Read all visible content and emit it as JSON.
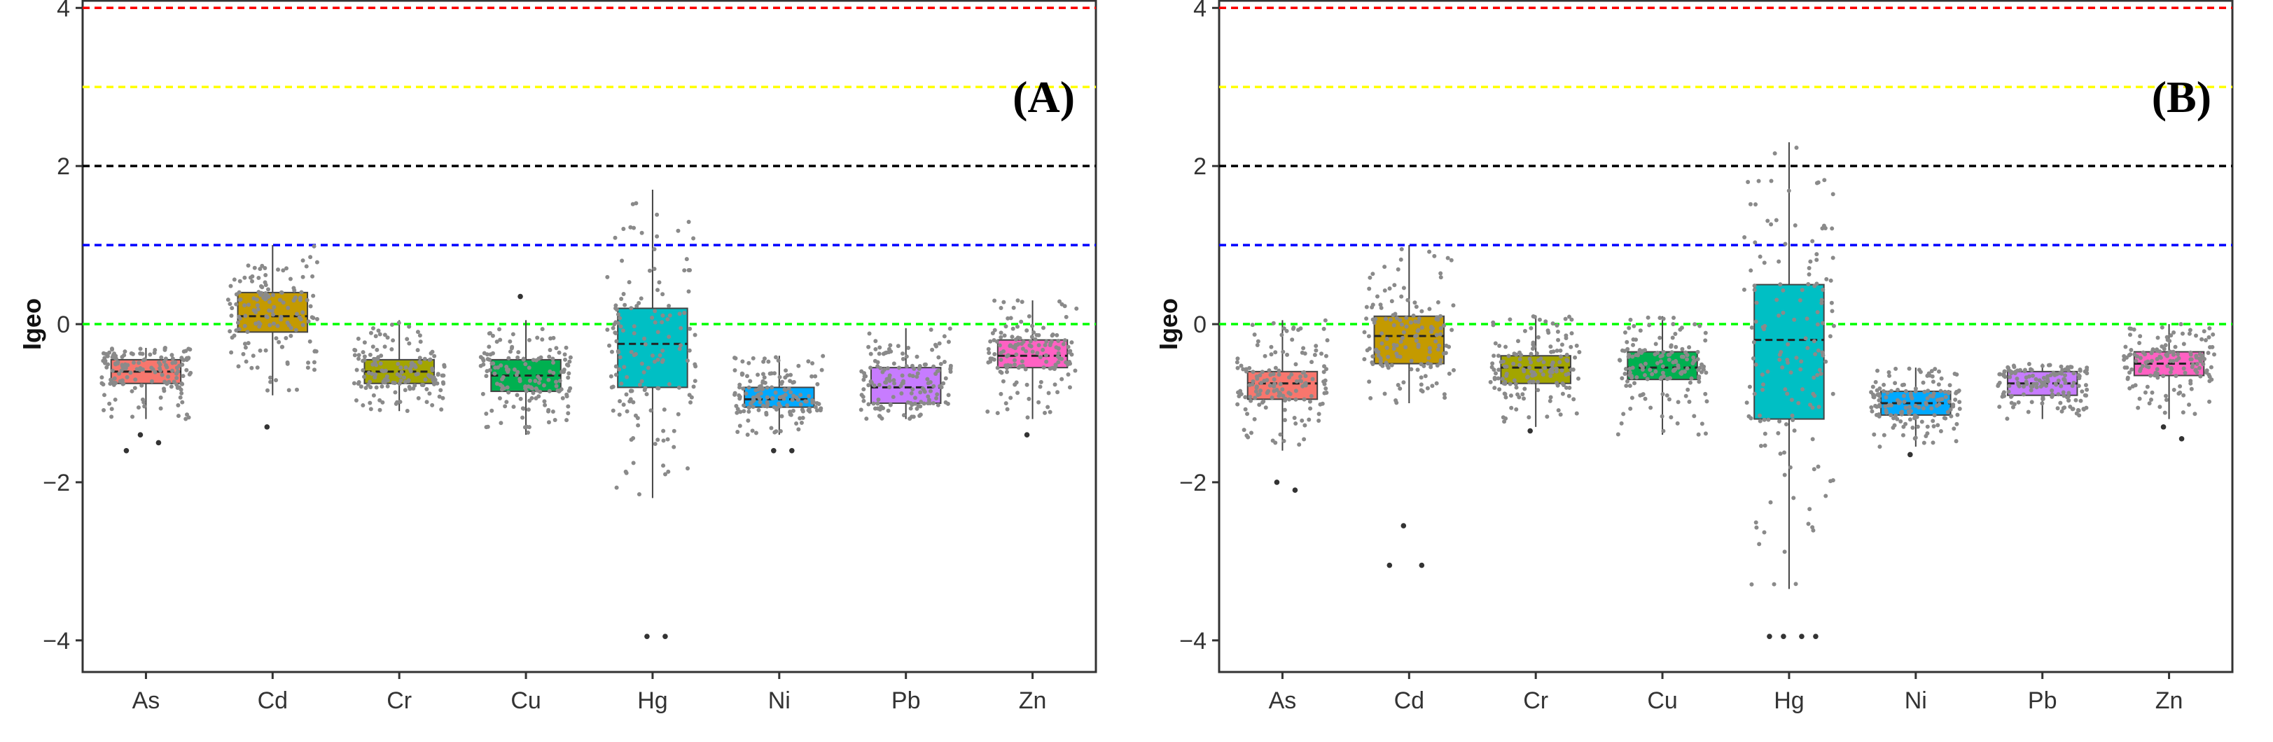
{
  "chart_data": [
    {
      "type": "box",
      "panel_label": "(A)",
      "ylabel": "Igeo",
      "ylim": [
        -4.4,
        4.1
      ],
      "yticks": [
        "4",
        "2",
        "0",
        "−2",
        "−4"
      ],
      "ytick_values": [
        4,
        2,
        0,
        -2,
        -4
      ],
      "categories": [
        "As",
        "Cd",
        "Cr",
        "Cu",
        "Hg",
        "Ni",
        "Pb",
        "Zn"
      ],
      "colors": [
        "#F8766D",
        "#C49A00",
        "#A3A500",
        "#00B050",
        "#00BFC4",
        "#00A9FF",
        "#C77CFF",
        "#FF61C3"
      ],
      "reference_lines": [
        {
          "value": 4,
          "color": "#ff0000"
        },
        {
          "value": 3,
          "color": "#ffff00"
        },
        {
          "value": 2,
          "color": "#000000"
        },
        {
          "value": 1,
          "color": "#0000ff"
        },
        {
          "value": 0,
          "color": "#00ff00"
        }
      ],
      "boxes": [
        {
          "q1": -0.75,
          "median": -0.6,
          "q3": -0.45,
          "wlo": -1.2,
          "whi": -0.3,
          "outliers": [
            -1.4,
            -1.5,
            -1.6
          ]
        },
        {
          "q1": -0.1,
          "median": 0.1,
          "q3": 0.4,
          "wlo": -0.9,
          "whi": 1.0,
          "outliers": [
            -1.3
          ]
        },
        {
          "q1": -0.75,
          "median": -0.6,
          "q3": -0.45,
          "wlo": -1.1,
          "whi": 0.05,
          "outliers": []
        },
        {
          "q1": -0.85,
          "median": -0.65,
          "q3": -0.45,
          "wlo": -1.4,
          "whi": 0.05,
          "outliers": [
            0.35
          ]
        },
        {
          "q1": -0.8,
          "median": -0.25,
          "q3": 0.2,
          "wlo": -2.2,
          "whi": 1.7,
          "outliers": [
            -3.95,
            -3.95
          ]
        },
        {
          "q1": -1.05,
          "median": -0.95,
          "q3": -0.8,
          "wlo": -1.4,
          "whi": -0.4,
          "outliers": [
            -1.6,
            -1.6
          ]
        },
        {
          "q1": -1.0,
          "median": -0.8,
          "q3": -0.55,
          "wlo": -1.2,
          "whi": -0.05,
          "outliers": []
        },
        {
          "q1": -0.55,
          "median": -0.4,
          "q3": -0.2,
          "wlo": -1.2,
          "whi": 0.3,
          "outliers": [
            -1.4
          ]
        }
      ]
    },
    {
      "type": "box",
      "panel_label": "(B)",
      "ylabel": "Igeo",
      "ylim": [
        -4.4,
        4.1
      ],
      "yticks": [
        "4",
        "2",
        "0",
        "−2",
        "−4"
      ],
      "ytick_values": [
        4,
        2,
        0,
        -2,
        -4
      ],
      "categories": [
        "As",
        "Cd",
        "Cr",
        "Cu",
        "Hg",
        "Ni",
        "Pb",
        "Zn"
      ],
      "colors": [
        "#F8766D",
        "#C49A00",
        "#A3A500",
        "#00B050",
        "#00BFC4",
        "#00A9FF",
        "#C77CFF",
        "#FF61C3"
      ],
      "reference_lines": [
        {
          "value": 4,
          "color": "#ff0000"
        },
        {
          "value": 3,
          "color": "#ffff00"
        },
        {
          "value": 2,
          "color": "#000000"
        },
        {
          "value": 1,
          "color": "#0000ff"
        },
        {
          "value": 0,
          "color": "#00ff00"
        }
      ],
      "boxes": [
        {
          "q1": -0.95,
          "median": -0.75,
          "q3": -0.6,
          "wlo": -1.6,
          "whi": 0.05,
          "outliers": [
            -2.0,
            -2.1
          ]
        },
        {
          "q1": -0.5,
          "median": -0.15,
          "q3": 0.1,
          "wlo": -1.0,
          "whi": 1.0,
          "outliers": [
            -2.55,
            -3.05,
            -3.05
          ]
        },
        {
          "q1": -0.75,
          "median": -0.55,
          "q3": -0.4,
          "wlo": -1.3,
          "whi": 0.1,
          "outliers": [
            -1.35
          ]
        },
        {
          "q1": -0.7,
          "median": -0.55,
          "q3": -0.35,
          "wlo": -1.4,
          "whi": 0.1,
          "outliers": []
        },
        {
          "q1": -1.2,
          "median": -0.2,
          "q3": 0.5,
          "wlo": -3.35,
          "whi": 2.3,
          "outliers": [
            -3.95,
            -3.95,
            -3.95,
            -3.95
          ]
        },
        {
          "q1": -1.15,
          "median": -1.0,
          "q3": -0.85,
          "wlo": -1.55,
          "whi": -0.55,
          "outliers": [
            -1.65
          ]
        },
        {
          "q1": -0.9,
          "median": -0.75,
          "q3": -0.6,
          "wlo": -1.2,
          "whi": -0.5,
          "outliers": []
        },
        {
          "q1": -0.65,
          "median": -0.5,
          "q3": -0.35,
          "wlo": -1.2,
          "whi": 0.0,
          "outliers": [
            -1.3,
            -1.45
          ]
        }
      ]
    }
  ]
}
